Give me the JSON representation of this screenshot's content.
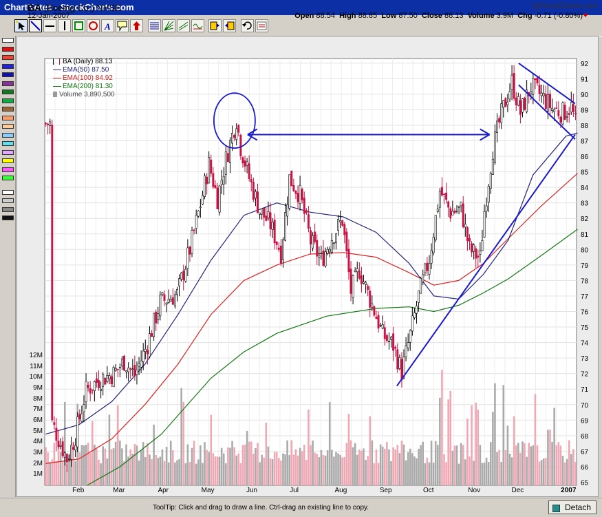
{
  "window": {
    "title": "ChartNotes - StockCharts.com"
  },
  "toolbar": {
    "tools": [
      "pointer-tool",
      "line-tool",
      "horizontal-line-tool",
      "vertical-line-tool",
      "rectangle-tool",
      "ellipse-tool",
      "text-tool",
      "callout-tool",
      "arrow-tool",
      "retracement-tool",
      "fan-tool",
      "trendchannel-tool",
      "cycle-tool",
      "bring-front-tool",
      "send-back-tool",
      "undo-tool",
      "clear-tool"
    ]
  },
  "palette": {
    "colors": [
      "#ffffff",
      "#dd1111",
      "#ee4433",
      "#2222dd",
      "#1111aa",
      "#883399",
      "#117722",
      "#11aa44",
      "#996633",
      "#ff9966",
      "#ffcc99",
      "#88ccff",
      "#66ddee",
      "#ddaaff",
      "#ffff00",
      "#ff55ff",
      "#33ff33",
      "#ffffff",
      "#cccccc",
      "#888888",
      "#111111"
    ]
  },
  "header": {
    "symbol": "BA",
    "company": "(Boeing Co.)",
    "exchange": "NYSE",
    "date": "12-Jan-2007",
    "copyright": "@StockCharts.com",
    "open_label": "Open",
    "open": "88.54",
    "high_label": "High",
    "high": "88.85",
    "low_label": "Low",
    "low": "87.50",
    "close_label": "Close",
    "close": "88.13",
    "volume_label": "Volume",
    "volume": "3.9M",
    "chg_label": "Chg",
    "chg": "-0.71 (-0.80%)"
  },
  "legend": {
    "price": "BA (Daily) 88.13",
    "ema50": "EMA(50) 87.50",
    "ema100": "EMA(100) 84.92",
    "ema200": "EMA(200) 81.30",
    "volume": "Volume 3,890,500"
  },
  "colors": {
    "ema50": "#22227a",
    "ema100": "#dd2222",
    "ema200": "#117711",
    "up_candle": "#000000",
    "down_candle": "#cc1144",
    "annotation": "#1a1acc",
    "vol_up": "#aaaaaa",
    "vol_down": "#f0a8b4"
  },
  "chart_data": {
    "type": "candlestick",
    "title": "BA (Daily) 88.13",
    "price_axis": {
      "side": "right",
      "ticks": [
        65,
        66,
        67,
        68,
        69,
        70,
        71,
        72,
        73,
        74,
        75,
        76,
        77,
        78,
        79,
        80,
        81,
        82,
        83,
        84,
        85,
        86,
        87,
        88,
        89,
        90,
        91,
        92
      ],
      "ylim": [
        64.8,
        92.3
      ]
    },
    "volume_axis": {
      "side": "left",
      "ticks": [
        "1M",
        "2M",
        "3M",
        "4M",
        "5M",
        "6M",
        "7M",
        "8M",
        "9M",
        "10M",
        "11M",
        "12M"
      ],
      "ylim_millions": [
        0,
        12
      ]
    },
    "x_labels": [
      "Feb",
      "Mar",
      "Apr",
      "May",
      "Jun",
      "Jul",
      "Aug",
      "Sep",
      "Oct",
      "Nov",
      "Dec",
      "2007"
    ],
    "close_path": [
      {
        "d": "2006-01-16",
        "c": 68.8
      },
      {
        "d": "2006-01-25",
        "c": 66.5
      },
      {
        "d": "2006-02-01",
        "c": 68.0
      },
      {
        "d": "2006-02-08",
        "c": 70.9
      },
      {
        "d": "2006-02-16",
        "c": 71.6
      },
      {
        "d": "2006-02-27",
        "c": 72.0
      },
      {
        "d": "2006-03-06",
        "c": 72.8
      },
      {
        "d": "2006-03-14",
        "c": 71.9
      },
      {
        "d": "2006-03-22",
        "c": 73.9
      },
      {
        "d": "2006-03-31",
        "c": 76.6
      },
      {
        "d": "2006-04-12",
        "c": 77.1
      },
      {
        "d": "2006-04-21",
        "c": 80.0
      },
      {
        "d": "2006-04-28",
        "c": 82.9
      },
      {
        "d": "2006-05-03",
        "c": 85.5
      },
      {
        "d": "2006-05-10",
        "c": 83.3
      },
      {
        "d": "2006-05-15",
        "c": 85.8
      },
      {
        "d": "2006-05-22",
        "c": 88.4
      },
      {
        "d": "2006-05-25",
        "c": 86.6
      },
      {
        "d": "2006-05-31",
        "c": 84.6
      },
      {
        "d": "2006-06-08",
        "c": 82.5
      },
      {
        "d": "2006-06-15",
        "c": 81.6
      },
      {
        "d": "2006-06-22",
        "c": 79.8
      },
      {
        "d": "2006-06-28",
        "c": 84.6
      },
      {
        "d": "2006-07-06",
        "c": 83.5
      },
      {
        "d": "2006-07-13",
        "c": 80.5
      },
      {
        "d": "2006-07-20",
        "c": 79.3
      },
      {
        "d": "2006-07-27",
        "c": 80.8
      },
      {
        "d": "2006-08-03",
        "c": 81.9
      },
      {
        "d": "2006-08-10",
        "c": 77.3
      },
      {
        "d": "2006-08-16",
        "c": 78.7
      },
      {
        "d": "2006-08-22",
        "c": 76.8
      },
      {
        "d": "2006-08-28",
        "c": 75.3
      },
      {
        "d": "2006-09-01",
        "c": 74.5
      },
      {
        "d": "2006-09-08",
        "c": 73.8
      },
      {
        "d": "2006-09-13",
        "c": 72.1
      },
      {
        "d": "2006-09-19",
        "c": 74.5
      },
      {
        "d": "2006-09-26",
        "c": 77.0
      },
      {
        "d": "2006-10-03",
        "c": 79.4
      },
      {
        "d": "2006-10-10",
        "c": 83.8
      },
      {
        "d": "2006-10-17",
        "c": 82.4
      },
      {
        "d": "2006-10-24",
        "c": 82.6
      },
      {
        "d": "2006-10-31",
        "c": 80.0
      },
      {
        "d": "2006-11-07",
        "c": 79.4
      },
      {
        "d": "2006-11-10",
        "c": 82.5
      },
      {
        "d": "2006-11-16",
        "c": 86.5
      },
      {
        "d": "2006-11-22",
        "c": 88.7
      },
      {
        "d": "2006-11-29",
        "c": 90.8
      },
      {
        "d": "2006-12-05",
        "c": 88.8
      },
      {
        "d": "2006-12-12",
        "c": 90.5
      },
      {
        "d": "2006-12-19",
        "c": 89.9
      },
      {
        "d": "2006-12-27",
        "c": 89.1
      },
      {
        "d": "2007-01-03",
        "c": 88.8
      },
      {
        "d": "2007-01-08",
        "c": 89.2
      },
      {
        "d": "2007-01-12",
        "c": 88.1
      }
    ],
    "ema50": [
      [
        0,
        68.1
      ],
      [
        20,
        68.7
      ],
      [
        40,
        70.2
      ],
      [
        60,
        72.6
      ],
      [
        80,
        75.8
      ],
      [
        100,
        79.3
      ],
      [
        120,
        82.2
      ],
      [
        140,
        83.0
      ],
      [
        160,
        82.4
      ],
      [
        180,
        82.1
      ],
      [
        200,
        81.1
      ],
      [
        220,
        79.1
      ],
      [
        235,
        77.0
      ],
      [
        250,
        76.8
      ],
      [
        265,
        78.4
      ],
      [
        280,
        80.6
      ],
      [
        295,
        84.8
      ],
      [
        315,
        87.3
      ],
      [
        322,
        87.5
      ]
    ],
    "ema100": [
      [
        0,
        66.2
      ],
      [
        20,
        66.5
      ],
      [
        40,
        67.8
      ],
      [
        60,
        70.0
      ],
      [
        80,
        72.6
      ],
      [
        100,
        75.8
      ],
      [
        120,
        78.0
      ],
      [
        140,
        79.0
      ],
      [
        160,
        79.7
      ],
      [
        180,
        79.8
      ],
      [
        200,
        79.5
      ],
      [
        220,
        78.5
      ],
      [
        235,
        77.7
      ],
      [
        250,
        78.0
      ],
      [
        265,
        79.1
      ],
      [
        280,
        80.7
      ],
      [
        300,
        82.8
      ],
      [
        322,
        84.9
      ]
    ],
    "ema200": [
      [
        25,
        64.8
      ],
      [
        45,
        66.0
      ],
      [
        70,
        68.1
      ],
      [
        100,
        71.7
      ],
      [
        120,
        73.4
      ],
      [
        140,
        74.6
      ],
      [
        170,
        75.7
      ],
      [
        200,
        76.2
      ],
      [
        220,
        76.3
      ],
      [
        235,
        76.0
      ],
      [
        250,
        76.4
      ],
      [
        265,
        77.2
      ],
      [
        280,
        78.1
      ],
      [
        300,
        79.6
      ],
      [
        322,
        81.3
      ]
    ],
    "annotations": {
      "circle_peak": {
        "date": "2006-05-22",
        "price": 88.3
      },
      "double_arrow": {
        "from": "2006-05-31",
        "to": "2006-11-14",
        "price": 87.4
      },
      "uptrend_line": {
        "from": [
          "2006-09-11",
          71.2
        ],
        "to": [
          "2007-01-12",
          87.4
        ]
      },
      "wedge_upper": {
        "from": [
          "2006-12-04",
          92.0
        ],
        "to": [
          "2007-01-12",
          89.4
        ]
      },
      "wedge_lower": {
        "from": [
          "2006-12-04",
          90.6
        ],
        "to": [
          "2007-01-12",
          87.1
        ]
      }
    }
  },
  "status": {
    "tooltip": "ToolTip: Click and drag to draw a line. Ctrl-drag an existing line to copy.",
    "detach": "Detach"
  }
}
